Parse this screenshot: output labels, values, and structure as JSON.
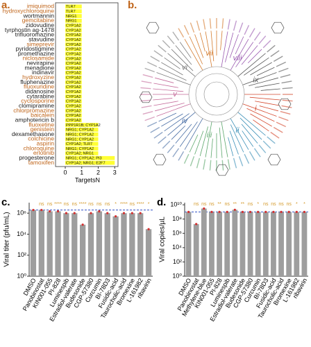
{
  "chart_data": [
    {
      "type": "barh",
      "panel_label": "a.",
      "xlabel": "TargetsN",
      "xlim": [
        0,
        3.2
      ],
      "xticks": [
        0,
        1,
        2,
        3
      ],
      "color": "#ffff33",
      "categories": [
        "imiquimod",
        "hydroxychloroquine",
        "wortmannin",
        "gemcitabine",
        "zidovudine",
        "tyrphostin ag-1478",
        "trifluoromazine",
        "stavudine",
        "simeprevir",
        "pyridostigmine",
        "promethazine",
        "niclosamide",
        "nevirapine",
        "menadione",
        "indinavir",
        "hydroxyzine",
        "fluphenazine",
        "fluoxuridine",
        "didanosine",
        "cytarabine",
        "cyclosporine",
        "clomipramine",
        "chlorpromazine",
        "baicalein",
        "amphotericin b",
        "fluoxetine",
        "genistein",
        "dexamethasone",
        "colchicine",
        "aspirin",
        "chloroquine",
        "erlotinib",
        "progesterone",
        "tamoxifen"
      ],
      "category_colors": [
        "#c0651a",
        "#c0651a",
        "#222222",
        "#c0651a",
        "#222222",
        "#222222",
        "#222222",
        "#222222",
        "#c0651a",
        "#222222",
        "#222222",
        "#c0651a",
        "#222222",
        "#222222",
        "#222222",
        "#c0651a",
        "#222222",
        "#c0651a",
        "#222222",
        "#222222",
        "#c0651a",
        "#222222",
        "#c0651a",
        "#c0651a",
        "#222222",
        "#c0651a",
        "#c0651a",
        "#222222",
        "#c0651a",
        "#c0651a",
        "#c0651a",
        "#c0651a",
        "#222222",
        "#c0651a"
      ],
      "values": [
        1,
        1,
        1,
        1,
        1,
        1,
        1,
        1,
        1,
        1,
        1,
        1,
        1,
        1,
        1,
        1,
        1,
        1,
        1,
        1,
        1,
        1,
        1,
        1,
        1,
        2,
        2,
        2,
        2,
        2,
        2,
        2,
        3,
        3
      ],
      "bar_labels": [
        "TLR7",
        "TLR7",
        "NRG1",
        "NRG1",
        "CYP1A2",
        "CYP1A2",
        "CYP1A2",
        "CYP1A2",
        "CYP1A2",
        "CYP1A2",
        "CYP1A2",
        "CYP1A2",
        "CYP1A2",
        "CYP1A2",
        "CYP1A2",
        "CYP1A2",
        "CYP1A2",
        "CYP1A2",
        "CYP1A2",
        "CYP1A2",
        "CYP1A2",
        "CYP1A2",
        "CYP1A2",
        "CYP1A2",
        "CYP1A2",
        "PPP1R1B; CYP1A2",
        "NRG1; CYP1A2",
        "NRG1; CYP1A2",
        "NRG1; CYP1A2",
        "CYP1A2; TLR7",
        "NRG1; CYP1A2",
        "CYP1A2; NRG1",
        "NRG1; CYP1A2; PI3",
        "CYP1A2; NRG1; E2F7"
      ]
    },
    {
      "type": "dendrogram",
      "panel_label": "b.",
      "clusters": [
        "i",
        "ii",
        "iii",
        "iv",
        "v",
        "vi",
        "vii",
        "viii",
        "ix"
      ],
      "cluster_colors": [
        "#d4472c",
        "#3a8fb7",
        "#5aa66a",
        "#4a6fa5",
        "#c46a9a",
        "#7a7a7a",
        "#d47a2c",
        "#9a5ab0",
        "#555555"
      ]
    },
    {
      "type": "bar",
      "panel_label": "c.",
      "ylabel": "Viral titer (pfu/mL)",
      "log": true,
      "color": "#9e9e9e",
      "annotation_color": "#d49a2c",
      "ylim": [
        1,
        10000000
      ],
      "yticks": [
        {
          "value": 1,
          "label": "10⁰"
        },
        {
          "value": 100,
          "label": "10²"
        },
        {
          "value": 10000,
          "label": "10⁴"
        },
        {
          "value": 1000000,
          "label": "10⁶"
        }
      ],
      "categories": [
        "DMSO",
        "Panobinostat",
        "KIN001-055",
        "PI-828",
        "Luminespib",
        "Estradiol-valerate",
        "Budesonide",
        "CGP-57380",
        "Curcumin",
        "BI-78D3",
        "Fusidic-acid",
        "Taurocholic-acid",
        "Bromexine",
        "L-161982",
        "ribavirin"
      ],
      "values": [
        2000000,
        2000000,
        1500000,
        1500000,
        1000000,
        1000000,
        80000,
        1000000,
        1500000,
        1000000,
        500000,
        1000000,
        1000000,
        1000000,
        30000
      ],
      "annotations": [
        null,
        "ns",
        "ns",
        "****",
        "ns",
        "ns",
        "****",
        "ns",
        "ns",
        "ns",
        "*",
        "****",
        "ns",
        "****",
        "*"
      ]
    },
    {
      "type": "bar",
      "panel_label": "d.",
      "ylabel": "Viral copies/µL",
      "log": true,
      "color": "#9e9e9e",
      "annotation_color": "#d49a2c",
      "ylim": [
        1,
        20000000000
      ],
      "yticks": [
        {
          "value": 1,
          "label": "10⁰"
        },
        {
          "value": 100,
          "label": "10²"
        },
        {
          "value": 10000,
          "label": "10⁴"
        },
        {
          "value": 1000000,
          "label": "10⁶"
        },
        {
          "value": 100000000,
          "label": "10⁸"
        },
        {
          "value": 10000000000,
          "label": "10¹⁰"
        }
      ],
      "categories": [
        "DMSO",
        "Panobinostat",
        "Methylene-blue",
        "KIN001-055",
        "PI-828",
        "Luminespib",
        "Estradiol-valerate",
        "Budesonide",
        "CGP-57380",
        "Curcumin",
        "BI-78D3",
        "Fusidic-acid",
        "Taurocholic-acid",
        "Bromexine",
        "L-161982",
        "ribavirin"
      ],
      "values": [
        1000000000,
        20000000,
        3000000000,
        1000000000,
        1000000000,
        1000000000,
        2000000000,
        1000000000,
        1000000000,
        1000000000,
        1000000000,
        1000000000,
        1000000000,
        1000000000,
        1000000000,
        1000000000
      ],
      "annotations": [
        null,
        "ns",
        "ns",
        "ns",
        "**",
        "ns",
        "**",
        "**",
        "ns",
        "*",
        "ns",
        "ns",
        "ns",
        "ns",
        "*",
        "*"
      ]
    }
  ]
}
